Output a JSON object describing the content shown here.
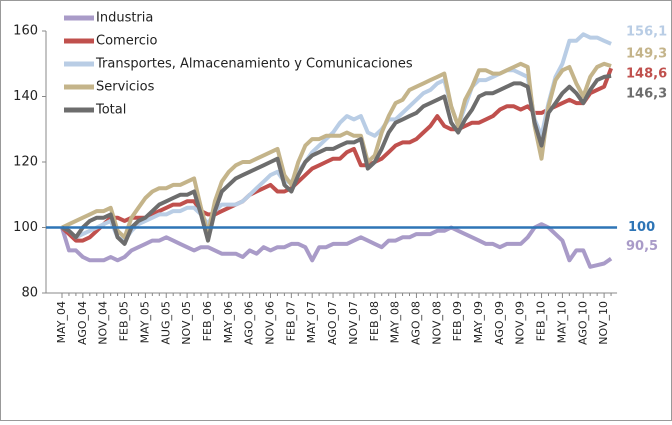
{
  "chart_data": {
    "type": "line",
    "categories": [
      "MAY_04",
      null,
      null,
      "AGO_04",
      null,
      null,
      "NOV_04",
      null,
      null,
      "FEB_05",
      null,
      null,
      "MAY_05",
      null,
      null,
      "AUG_05",
      null,
      null,
      "NOV_05",
      null,
      null,
      "FEB_06",
      null,
      null,
      "MAY_06",
      null,
      null,
      "AGO_06",
      null,
      null,
      "NOV_06",
      null,
      null,
      "FEB_07",
      null,
      null,
      "MAY_07",
      null,
      null,
      "AGO_07",
      null,
      null,
      "NOV_07",
      null,
      null,
      "FEB_08",
      null,
      null,
      "MAY_08",
      null,
      null,
      "AGO_08",
      null,
      null,
      "NOV_08",
      null,
      null,
      "FEB_09",
      null,
      null,
      "MAY_09",
      null,
      null,
      "AGO_09",
      null,
      null,
      "NOV_09",
      null,
      null,
      "FEB_10",
      null,
      null,
      "MAY_10",
      null,
      null,
      "AGO_10",
      null,
      null,
      "NOV_10",
      null
    ],
    "series": [
      {
        "name": "Industria",
        "color": "#a99bc8",
        "values": [
          100,
          93,
          93,
          91,
          90,
          90,
          90,
          91,
          90,
          91,
          93,
          94,
          95,
          96,
          96,
          97,
          96,
          95,
          94,
          93,
          94,
          94,
          93,
          92,
          92,
          92,
          91,
          93,
          92,
          94,
          93,
          94,
          94,
          95,
          95,
          94,
          90,
          94,
          94,
          95,
          95,
          95,
          96,
          97,
          96,
          95,
          94,
          96,
          96,
          97,
          97,
          98,
          98,
          98,
          99,
          99,
          100,
          99,
          98,
          97,
          96,
          95,
          95,
          94,
          95,
          95,
          95,
          97,
          100,
          101,
          100,
          98,
          96,
          90,
          93,
          93,
          88,
          88.5,
          89,
          90.5
        ],
        "value_labels": [
          null,
          null,
          null,
          null,
          null,
          null,
          null,
          null,
          null,
          null,
          null,
          null,
          null,
          null,
          null,
          null,
          null,
          null,
          null,
          null,
          null,
          null,
          null,
          null,
          null,
          null,
          null,
          null,
          null,
          null,
          null,
          null,
          null,
          null,
          null,
          null,
          null,
          null,
          null,
          null,
          null,
          null,
          null,
          null,
          null,
          null,
          null,
          null,
          null,
          null,
          null,
          null,
          null,
          null,
          null,
          null,
          null,
          null,
          null,
          null,
          null,
          null,
          null,
          null,
          null,
          null,
          null,
          null,
          null,
          null,
          null,
          null,
          null,
          null,
          null,
          null,
          null,
          null,
          null,
          "90,5"
        ]
      },
      {
        "name": "Comercio",
        "color": "#c0504d",
        "values": [
          100,
          98,
          96,
          96,
          97,
          99,
          101,
          103,
          103,
          102,
          103,
          103,
          103,
          104,
          105,
          106,
          107,
          107,
          108,
          108,
          105,
          104,
          104,
          105,
          106,
          107,
          108,
          110,
          111,
          112,
          113,
          111,
          111,
          112,
          114,
          116,
          118,
          119,
          120,
          121,
          121,
          123,
          124,
          119,
          119,
          120,
          121,
          123,
          125,
          126,
          126,
          127,
          129,
          131,
          134,
          131,
          130,
          130,
          131,
          132,
          132,
          133,
          134,
          136,
          137,
          137,
          136,
          137,
          135,
          135,
          136,
          137,
          138,
          139,
          138,
          138,
          141,
          142,
          143,
          148.6
        ],
        "value_labels": [
          null,
          null,
          null,
          null,
          null,
          null,
          null,
          null,
          null,
          null,
          null,
          null,
          null,
          null,
          null,
          null,
          null,
          null,
          null,
          null,
          null,
          null,
          null,
          null,
          null,
          null,
          null,
          null,
          null,
          null,
          null,
          null,
          null,
          null,
          null,
          null,
          null,
          null,
          null,
          null,
          null,
          null,
          null,
          null,
          null,
          null,
          null,
          null,
          null,
          null,
          null,
          null,
          null,
          null,
          null,
          null,
          null,
          null,
          null,
          null,
          null,
          null,
          null,
          null,
          null,
          null,
          null,
          null,
          null,
          null,
          null,
          null,
          null,
          null,
          null,
          null,
          null,
          null,
          null,
          "148,6"
        ]
      },
      {
        "name": "Transportes, Almacenamiento y Comunicaciones",
        "color": "#b9cde5",
        "values": [
          100,
          99,
          97,
          98,
          99,
          100,
          101,
          102,
          97,
          96,
          99,
          101,
          102,
          103,
          104,
          104,
          105,
          105,
          106,
          106,
          104,
          101,
          105,
          107,
          107,
          107,
          108,
          110,
          112,
          114,
          116,
          117,
          114,
          114,
          117,
          120,
          123,
          125,
          127,
          129,
          132,
          134,
          133,
          134,
          129,
          128,
          130,
          133,
          133,
          135,
          137,
          139,
          141,
          142,
          144,
          145,
          137,
          131,
          137,
          143,
          145,
          145,
          146,
          147,
          148,
          148,
          147,
          146,
          133,
          128,
          138,
          146,
          150,
          157,
          157,
          159,
          158,
          158,
          157,
          156.1
        ],
        "value_labels": [
          null,
          null,
          null,
          null,
          null,
          null,
          null,
          null,
          null,
          null,
          null,
          null,
          null,
          null,
          null,
          null,
          null,
          null,
          null,
          null,
          null,
          null,
          null,
          null,
          null,
          null,
          null,
          null,
          null,
          null,
          null,
          null,
          null,
          null,
          null,
          null,
          null,
          null,
          null,
          null,
          null,
          null,
          null,
          null,
          null,
          null,
          null,
          null,
          null,
          null,
          null,
          null,
          null,
          null,
          null,
          null,
          null,
          null,
          null,
          null,
          null,
          null,
          null,
          null,
          null,
          null,
          null,
          null,
          null,
          null,
          null,
          null,
          null,
          null,
          null,
          null,
          null,
          null,
          null,
          "156,1"
        ]
      },
      {
        "name": "Servicios",
        "color": "#c4b48a",
        "values": [
          100,
          101,
          102,
          103,
          104,
          105,
          105,
          106,
          99,
          97,
          103,
          106,
          109,
          111,
          112,
          112,
          113,
          113,
          114,
          115,
          106,
          98,
          108,
          114,
          117,
          119,
          120,
          120,
          121,
          122,
          123,
          124,
          116,
          113,
          120,
          125,
          127,
          127,
          128,
          128,
          128,
          129,
          128,
          128,
          120,
          122,
          129,
          134,
          138,
          139,
          142,
          143,
          144,
          145,
          146,
          147,
          137,
          131,
          139,
          143,
          148,
          148,
          147,
          147,
          148,
          149,
          150,
          149,
          131,
          121,
          137,
          145,
          148,
          149,
          144,
          140,
          146,
          149,
          150,
          149.3
        ],
        "value_labels": [
          null,
          null,
          null,
          null,
          null,
          null,
          null,
          null,
          null,
          null,
          null,
          null,
          null,
          null,
          null,
          null,
          null,
          null,
          null,
          null,
          null,
          null,
          null,
          null,
          null,
          null,
          null,
          null,
          null,
          null,
          null,
          null,
          null,
          null,
          null,
          null,
          null,
          null,
          null,
          null,
          null,
          null,
          null,
          null,
          null,
          null,
          null,
          null,
          null,
          null,
          null,
          null,
          null,
          null,
          null,
          null,
          null,
          null,
          null,
          null,
          null,
          null,
          null,
          null,
          null,
          null,
          null,
          null,
          null,
          null,
          null,
          null,
          null,
          null,
          null,
          null,
          null,
          null,
          null,
          "149,3"
        ]
      },
      {
        "name": "Total",
        "color": "#6d6d6d",
        "values": [
          100,
          99,
          97,
          100,
          102,
          103,
          103,
          104,
          97,
          95,
          100,
          102,
          103,
          105,
          107,
          108,
          109,
          110,
          110,
          111,
          104,
          96,
          105,
          111,
          113,
          115,
          116,
          117,
          118,
          119,
          120,
          121,
          113,
          111,
          116,
          120,
          122,
          123,
          124,
          124,
          125,
          126,
          126,
          127,
          118,
          120,
          124,
          129,
          132,
          133,
          134,
          135,
          137,
          138,
          139,
          140,
          132,
          129,
          133,
          136,
          140,
          141,
          141,
          142,
          143,
          144,
          144,
          143,
          132,
          125,
          135,
          138,
          141,
          143,
          141,
          138,
          142,
          145,
          146,
          146.3
        ],
        "value_labels": [
          null,
          null,
          null,
          null,
          null,
          null,
          null,
          null,
          null,
          null,
          null,
          null,
          null,
          null,
          null,
          null,
          null,
          null,
          null,
          null,
          null,
          null,
          null,
          null,
          null,
          null,
          null,
          null,
          null,
          null,
          null,
          null,
          null,
          null,
          null,
          null,
          null,
          null,
          null,
          null,
          null,
          null,
          null,
          null,
          null,
          null,
          null,
          null,
          null,
          null,
          null,
          null,
          null,
          null,
          null,
          null,
          null,
          null,
          null,
          null,
          null,
          null,
          null,
          null,
          null,
          null,
          null,
          null,
          null,
          null,
          null,
          null,
          null,
          null,
          null,
          null,
          null,
          null,
          null,
          "146,3"
        ]
      }
    ],
    "reference_line": 100,
    "reference_color": "#2e75b6",
    "ylim": [
      80,
      160
    ],
    "yticks": [
      80,
      100,
      120,
      140,
      160
    ],
    "grid": false,
    "legend": "top-left"
  }
}
